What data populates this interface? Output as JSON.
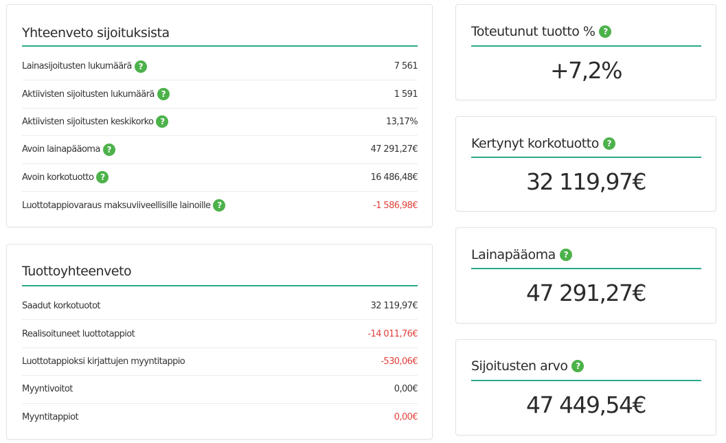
{
  "summary": {
    "title": "Yhteenveto sijoituksista",
    "rows": [
      {
        "label": "Lainasijoitusten lukumäärä",
        "value": "7 561",
        "negative": false
      },
      {
        "label": "Aktiivisten sijoitusten lukumäärä",
        "value": "1 591",
        "negative": false
      },
      {
        "label": "Aktiivisten sijoitusten keskikorko",
        "value": "13,17%",
        "negative": false
      },
      {
        "label": "Avoin lainapääoma",
        "value": "47 291,27€",
        "negative": false
      },
      {
        "label": "Avoin korkotuotto",
        "value": "16 486,48€",
        "negative": false
      },
      {
        "label": "Luottotappiovaraus maksuviiveellisille lainoille",
        "value": "-1 586,98€",
        "negative": true
      }
    ]
  },
  "returns": {
    "title": "Tuottoyhteenveto",
    "rows": [
      {
        "label": "Saadut korkotuotot",
        "value": "32 119,97€",
        "negative": false
      },
      {
        "label": "Realisoituneet luottotappiot",
        "value": "-14 011,76€",
        "negative": true
      },
      {
        "label": "Luottotappioksi kirjattujen myyntitappio",
        "value": "-530,06€",
        "negative": true
      },
      {
        "label": "Myyntivoitot",
        "value": "0,00€",
        "negative": false
      },
      {
        "label": "Myyntitappiot",
        "value": "0,00€",
        "negative": true
      }
    ]
  },
  "stats": [
    {
      "title": "Toteutunut tuotto %",
      "value": "+7,2%"
    },
    {
      "title": "Kertynyt korkotuotto",
      "value": "32 119,97€"
    },
    {
      "title": "Lainapääoma",
      "value": "47 291,27€"
    },
    {
      "title": "Sijoitusten arvo",
      "value": "47 449,54€"
    }
  ],
  "help_icon_glyph": "?",
  "colors": {
    "accent": "#2aa889",
    "help": "#4cb24a",
    "negative": "#e0413a"
  }
}
